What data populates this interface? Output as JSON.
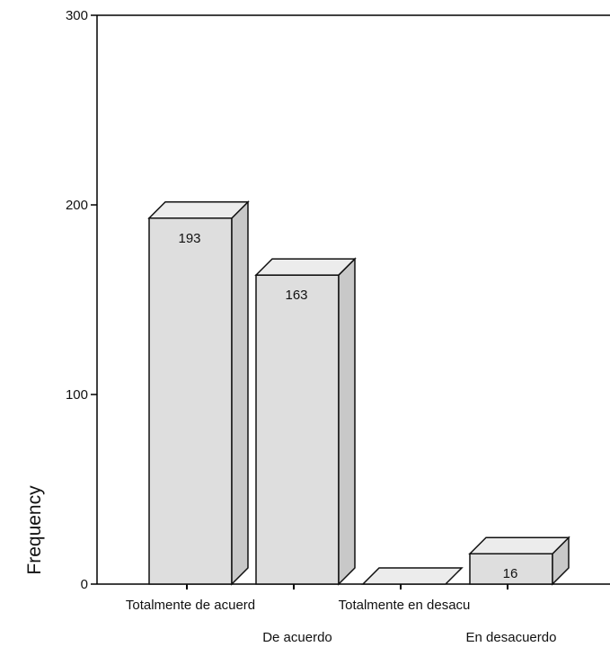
{
  "chart_data": {
    "type": "bar",
    "style": "3d",
    "title": "",
    "xlabel": "",
    "ylabel": "Frequency",
    "ylim": [
      0,
      300
    ],
    "yticks": [
      0,
      100,
      200,
      300
    ],
    "categories": [
      "Totalmente de acuerd",
      "De acuerdo",
      "Totalmente en desacu",
      "En desacuerdo"
    ],
    "values": [
      193,
      163,
      0,
      16
    ],
    "data_labels": [
      "193",
      "163",
      "",
      "16"
    ],
    "grid": false,
    "legend": "none",
    "colors": {
      "bar_face": "#dedede",
      "bar_top": "#ececec",
      "bar_side": "#c8c8c8",
      "outline": "#111111",
      "axis": "#000000"
    }
  }
}
